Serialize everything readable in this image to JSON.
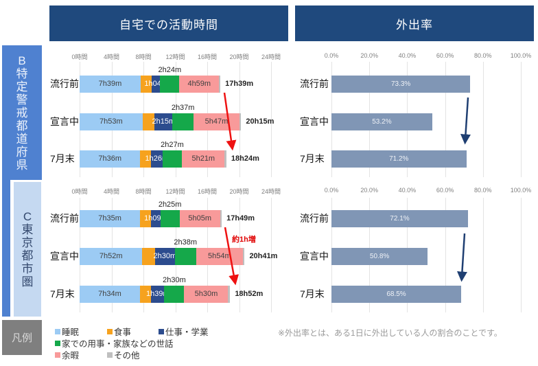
{
  "headers": {
    "home_activity": "自宅での活動時間",
    "outing_rate": "外出率"
  },
  "sidebar": {
    "b_chars": [
      "B",
      "特",
      "定",
      "警",
      "戒",
      "都",
      "道",
      "府",
      "県"
    ],
    "c_chars": [
      "C",
      "東",
      "京",
      "都",
      "市",
      "圏"
    ],
    "legend_title": "凡例"
  },
  "legend": {
    "items": [
      {
        "label": "睡眠",
        "color": "#9ccbf4"
      },
      {
        "label": "食事",
        "color": "#f6a21e"
      },
      {
        "label": "仕事・学業",
        "color": "#2c4c8e"
      },
      {
        "label": "家での用事・家族などの世話",
        "color": "#15a84a"
      },
      {
        "label": "余暇",
        "color": "#f89a9a"
      },
      {
        "label": "その他",
        "color": "#bfbfbf"
      }
    ]
  },
  "footnote": "※外出率とは、ある1日に外出している人の割合のことです。",
  "annotation_c": "約1h増",
  "chart_data": [
    {
      "type": "bar",
      "stacked": true,
      "orientation": "horizontal",
      "title": "自宅での活動時間",
      "group": "B 特定警戒都道府県",
      "x_ticks": [
        "0時間",
        "4時間",
        "8時間",
        "12時間",
        "16時間",
        "20時間",
        "24時間"
      ],
      "xlim_minutes": [
        0,
        1440
      ],
      "grid": true,
      "categories": [
        "流行前",
        "宣言中",
        "7月末"
      ],
      "series_names": [
        "睡眠",
        "食事",
        "仕事・学業",
        "家での用事・家族などの世話",
        "余暇",
        "その他"
      ],
      "rows": [
        {
          "label": "流行前",
          "minutes": [
            459,
            83,
            64,
            144,
            299,
            10
          ],
          "labels": [
            "7h39m",
            "",
            "1h04m",
            "2h24m",
            "4h59m",
            ""
          ],
          "total": "17h39m"
        },
        {
          "label": "宣言中",
          "minutes": [
            473,
            91,
            135,
            157,
            347,
            12
          ],
          "labels": [
            "7h53m",
            "",
            "2h15m",
            "2h37m",
            "5h47m",
            ""
          ],
          "total": "20h15m"
        },
        {
          "label": "7月末",
          "minutes": [
            456,
            81,
            86,
            147,
            321,
            13
          ],
          "labels": [
            "7h36m",
            "",
            "1h26m",
            "2h27m",
            "5h21m",
            ""
          ],
          "total": "18h24m"
        }
      ]
    },
    {
      "type": "bar",
      "orientation": "horizontal",
      "title": "外出率",
      "group": "B 特定警戒都道府県",
      "x_ticks": [
        "0.0%",
        "20.0%",
        "40.0%",
        "60.0%",
        "80.0%",
        "100.0%"
      ],
      "xlim": [
        0,
        100
      ],
      "grid": true,
      "categories": [
        "流行前",
        "宣言中",
        "7月末"
      ],
      "values": [
        73.3,
        53.2,
        71.2
      ],
      "labels": [
        "73.3%",
        "53.2%",
        "71.2%"
      ]
    },
    {
      "type": "bar",
      "stacked": true,
      "orientation": "horizontal",
      "title": "自宅での活動時間",
      "group": "C 東京都市圏",
      "x_ticks": [
        "0時間",
        "4時間",
        "8時間",
        "12時間",
        "16時間",
        "20時間",
        "24時間"
      ],
      "xlim_minutes": [
        0,
        1440
      ],
      "grid": true,
      "categories": [
        "流行前",
        "宣言中",
        "7月末"
      ],
      "series_names": [
        "睡眠",
        "食事",
        "仕事・学業",
        "家での用事・家族などの世話",
        "余暇",
        "その他"
      ],
      "rows": [
        {
          "label": "流行前",
          "minutes": [
            455,
            83,
            69,
            145,
            305,
            12
          ],
          "labels": [
            "7h35m",
            "",
            "1h09m",
            "2h25m",
            "5h05m",
            ""
          ],
          "total": "17h49m"
        },
        {
          "label": "宣言中",
          "minutes": [
            472,
            95,
            150,
            158,
            354,
            12
          ],
          "labels": [
            "7h52m",
            "",
            "2h30m",
            "2h38m",
            "5h54m",
            ""
          ],
          "total": "20h41m"
        },
        {
          "label": "7月末",
          "minutes": [
            454,
            84,
            99,
            150,
            330,
            15
          ],
          "labels": [
            "7h34m",
            "",
            "1h39m",
            "2h30m",
            "5h30m",
            ""
          ],
          "total": "18h52m"
        }
      ]
    },
    {
      "type": "bar",
      "orientation": "horizontal",
      "title": "外出率",
      "group": "C 東京都市圏",
      "x_ticks": [
        "0.0%",
        "20.0%",
        "40.0%",
        "60.0%",
        "80.0%",
        "100.0%"
      ],
      "xlim": [
        0,
        100
      ],
      "grid": true,
      "categories": [
        "流行前",
        "宣言中",
        "7月末"
      ],
      "values": [
        72.1,
        50.8,
        68.5
      ],
      "labels": [
        "72.1%",
        "50.8%",
        "68.5%"
      ]
    }
  ]
}
